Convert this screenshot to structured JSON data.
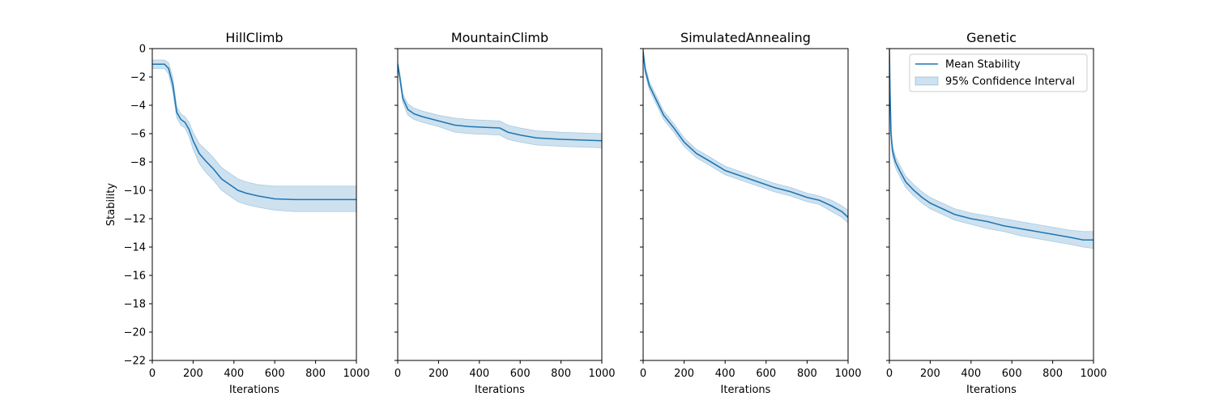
{
  "chart_data": {
    "type": "line",
    "layout": "4 side-by-side subplots, shared y-axis",
    "ylabel": "Stability",
    "xlabel": "Iterations",
    "xlim": [
      0,
      1000
    ],
    "ylim": [
      -22,
      0
    ],
    "x_ticks": [
      0,
      200,
      400,
      600,
      800,
      1000
    ],
    "y_ticks": [
      0,
      -2,
      -4,
      -6,
      -8,
      -10,
      -12,
      -14,
      -16,
      -18,
      -20,
      -22
    ],
    "grid": false,
    "line_color": "#1f77b4",
    "band_color": "#1f77b4",
    "legend": {
      "placement": "upper right of last subplot",
      "entries": [
        {
          "label": "Mean Stability",
          "kind": "line"
        },
        {
          "label": "95% Confidence Interval",
          "kind": "band"
        }
      ]
    },
    "subplots": [
      {
        "title": "HillClimb",
        "mean": [
          [
            0,
            -1.1
          ],
          [
            60,
            -1.1
          ],
          [
            80,
            -1.4
          ],
          [
            100,
            -2.5
          ],
          [
            120,
            -4.5
          ],
          [
            140,
            -5.0
          ],
          [
            160,
            -5.2
          ],
          [
            180,
            -5.7
          ],
          [
            200,
            -6.5
          ],
          [
            230,
            -7.4
          ],
          [
            260,
            -7.9
          ],
          [
            300,
            -8.5
          ],
          [
            340,
            -9.2
          ],
          [
            380,
            -9.6
          ],
          [
            420,
            -10.0
          ],
          [
            460,
            -10.2
          ],
          [
            520,
            -10.4
          ],
          [
            600,
            -10.6
          ],
          [
            700,
            -10.65
          ],
          [
            800,
            -10.65
          ],
          [
            1000,
            -10.65
          ]
        ],
        "ci_upper": [
          [
            0,
            -0.8
          ],
          [
            60,
            -0.8
          ],
          [
            80,
            -1.0
          ],
          [
            100,
            -2.0
          ],
          [
            120,
            -4.1
          ],
          [
            140,
            -4.6
          ],
          [
            160,
            -4.8
          ],
          [
            180,
            -5.2
          ],
          [
            200,
            -5.9
          ],
          [
            230,
            -6.7
          ],
          [
            260,
            -7.1
          ],
          [
            300,
            -7.7
          ],
          [
            340,
            -8.4
          ],
          [
            380,
            -8.8
          ],
          [
            420,
            -9.2
          ],
          [
            460,
            -9.4
          ],
          [
            520,
            -9.6
          ],
          [
            600,
            -9.7
          ],
          [
            700,
            -9.7
          ],
          [
            800,
            -9.7
          ],
          [
            1000,
            -9.7
          ]
        ],
        "ci_lower": [
          [
            0,
            -1.4
          ],
          [
            60,
            -1.4
          ],
          [
            80,
            -1.8
          ],
          [
            100,
            -3.0
          ],
          [
            120,
            -4.9
          ],
          [
            140,
            -5.4
          ],
          [
            160,
            -5.6
          ],
          [
            180,
            -6.2
          ],
          [
            200,
            -7.1
          ],
          [
            230,
            -8.1
          ],
          [
            260,
            -8.7
          ],
          [
            300,
            -9.3
          ],
          [
            340,
            -10.0
          ],
          [
            380,
            -10.4
          ],
          [
            420,
            -10.8
          ],
          [
            460,
            -11.0
          ],
          [
            520,
            -11.2
          ],
          [
            600,
            -11.4
          ],
          [
            700,
            -11.5
          ],
          [
            800,
            -11.5
          ],
          [
            1000,
            -11.5
          ]
        ]
      },
      {
        "title": "MountainClimb",
        "mean": [
          [
            0,
            -1.1
          ],
          [
            10,
            -2.0
          ],
          [
            25,
            -3.5
          ],
          [
            50,
            -4.3
          ],
          [
            80,
            -4.6
          ],
          [
            120,
            -4.8
          ],
          [
            200,
            -5.1
          ],
          [
            280,
            -5.4
          ],
          [
            350,
            -5.5
          ],
          [
            420,
            -5.55
          ],
          [
            500,
            -5.6
          ],
          [
            540,
            -5.9
          ],
          [
            600,
            -6.1
          ],
          [
            680,
            -6.3
          ],
          [
            800,
            -6.4
          ],
          [
            900,
            -6.45
          ],
          [
            1000,
            -6.5
          ]
        ],
        "ci_upper": [
          [
            0,
            -0.9
          ],
          [
            10,
            -1.7
          ],
          [
            25,
            -3.2
          ],
          [
            50,
            -3.9
          ],
          [
            80,
            -4.2
          ],
          [
            120,
            -4.4
          ],
          [
            200,
            -4.7
          ],
          [
            280,
            -4.9
          ],
          [
            350,
            -5.0
          ],
          [
            420,
            -5.05
          ],
          [
            500,
            -5.1
          ],
          [
            540,
            -5.4
          ],
          [
            600,
            -5.6
          ],
          [
            680,
            -5.8
          ],
          [
            800,
            -5.9
          ],
          [
            900,
            -5.95
          ],
          [
            1000,
            -6.0
          ]
        ],
        "ci_lower": [
          [
            0,
            -1.3
          ],
          [
            10,
            -2.3
          ],
          [
            25,
            -3.8
          ],
          [
            50,
            -4.7
          ],
          [
            80,
            -5.0
          ],
          [
            120,
            -5.2
          ],
          [
            200,
            -5.5
          ],
          [
            280,
            -5.9
          ],
          [
            350,
            -6.0
          ],
          [
            420,
            -6.05
          ],
          [
            500,
            -6.1
          ],
          [
            540,
            -6.4
          ],
          [
            600,
            -6.6
          ],
          [
            680,
            -6.8
          ],
          [
            800,
            -6.9
          ],
          [
            900,
            -6.95
          ],
          [
            1000,
            -7.0
          ]
        ]
      },
      {
        "title": "SimulatedAnnealing",
        "mean": [
          [
            0,
            -0.2
          ],
          [
            10,
            -1.5
          ],
          [
            30,
            -2.6
          ],
          [
            60,
            -3.5
          ],
          [
            100,
            -4.7
          ],
          [
            150,
            -5.6
          ],
          [
            200,
            -6.6
          ],
          [
            260,
            -7.4
          ],
          [
            320,
            -7.9
          ],
          [
            400,
            -8.6
          ],
          [
            480,
            -9.0
          ],
          [
            560,
            -9.4
          ],
          [
            640,
            -9.8
          ],
          [
            720,
            -10.1
          ],
          [
            800,
            -10.5
          ],
          [
            860,
            -10.7
          ],
          [
            920,
            -11.1
          ],
          [
            970,
            -11.5
          ],
          [
            1000,
            -11.9
          ]
        ],
        "ci_upper": [
          [
            0,
            0.0
          ],
          [
            10,
            -1.2
          ],
          [
            30,
            -2.3
          ],
          [
            60,
            -3.2
          ],
          [
            100,
            -4.4
          ],
          [
            150,
            -5.3
          ],
          [
            200,
            -6.3
          ],
          [
            260,
            -7.1
          ],
          [
            320,
            -7.6
          ],
          [
            400,
            -8.3
          ],
          [
            480,
            -8.7
          ],
          [
            560,
            -9.1
          ],
          [
            640,
            -9.5
          ],
          [
            720,
            -9.8
          ],
          [
            800,
            -10.2
          ],
          [
            860,
            -10.4
          ],
          [
            920,
            -10.7
          ],
          [
            970,
            -11.1
          ],
          [
            1000,
            -11.4
          ]
        ],
        "ci_lower": [
          [
            0,
            -0.5
          ],
          [
            10,
            -1.8
          ],
          [
            30,
            -2.9
          ],
          [
            60,
            -3.8
          ],
          [
            100,
            -5.0
          ],
          [
            150,
            -5.9
          ],
          [
            200,
            -6.9
          ],
          [
            260,
            -7.7
          ],
          [
            320,
            -8.2
          ],
          [
            400,
            -8.9
          ],
          [
            480,
            -9.3
          ],
          [
            560,
            -9.7
          ],
          [
            640,
            -10.1
          ],
          [
            720,
            -10.4
          ],
          [
            800,
            -10.8
          ],
          [
            860,
            -11.0
          ],
          [
            920,
            -11.5
          ],
          [
            970,
            -11.9
          ],
          [
            1000,
            -12.3
          ]
        ]
      },
      {
        "title": "Genetic",
        "mean": [
          [
            0,
            0.0
          ],
          [
            3,
            -3.0
          ],
          [
            8,
            -6.0
          ],
          [
            15,
            -7.2
          ],
          [
            30,
            -8.0
          ],
          [
            50,
            -8.6
          ],
          [
            80,
            -9.4
          ],
          [
            120,
            -10.0
          ],
          [
            160,
            -10.5
          ],
          [
            200,
            -10.9
          ],
          [
            260,
            -11.3
          ],
          [
            320,
            -11.7
          ],
          [
            400,
            -12.0
          ],
          [
            480,
            -12.2
          ],
          [
            560,
            -12.5
          ],
          [
            640,
            -12.7
          ],
          [
            720,
            -12.9
          ],
          [
            800,
            -13.1
          ],
          [
            880,
            -13.3
          ],
          [
            950,
            -13.5
          ],
          [
            1000,
            -13.5
          ]
        ],
        "ci_upper": [
          [
            0,
            0.0
          ],
          [
            3,
            -2.5
          ],
          [
            8,
            -5.5
          ],
          [
            15,
            -6.8
          ],
          [
            30,
            -7.6
          ],
          [
            50,
            -8.2
          ],
          [
            80,
            -9.0
          ],
          [
            120,
            -9.6
          ],
          [
            160,
            -10.1
          ],
          [
            200,
            -10.5
          ],
          [
            260,
            -10.9
          ],
          [
            320,
            -11.3
          ],
          [
            400,
            -11.6
          ],
          [
            480,
            -11.8
          ],
          [
            560,
            -12.0
          ],
          [
            640,
            -12.2
          ],
          [
            720,
            -12.4
          ],
          [
            800,
            -12.6
          ],
          [
            880,
            -12.8
          ],
          [
            950,
            -12.9
          ],
          [
            1000,
            -12.9
          ]
        ],
        "ci_lower": [
          [
            0,
            0.0
          ],
          [
            3,
            -3.5
          ],
          [
            8,
            -6.5
          ],
          [
            15,
            -7.6
          ],
          [
            30,
            -8.4
          ],
          [
            50,
            -9.0
          ],
          [
            80,
            -9.8
          ],
          [
            120,
            -10.4
          ],
          [
            160,
            -10.9
          ],
          [
            200,
            -11.3
          ],
          [
            260,
            -11.7
          ],
          [
            320,
            -12.1
          ],
          [
            400,
            -12.4
          ],
          [
            480,
            -12.7
          ],
          [
            560,
            -12.9
          ],
          [
            640,
            -13.2
          ],
          [
            720,
            -13.4
          ],
          [
            800,
            -13.6
          ],
          [
            880,
            -13.8
          ],
          [
            950,
            -14.0
          ],
          [
            1000,
            -14.1
          ]
        ]
      }
    ]
  }
}
